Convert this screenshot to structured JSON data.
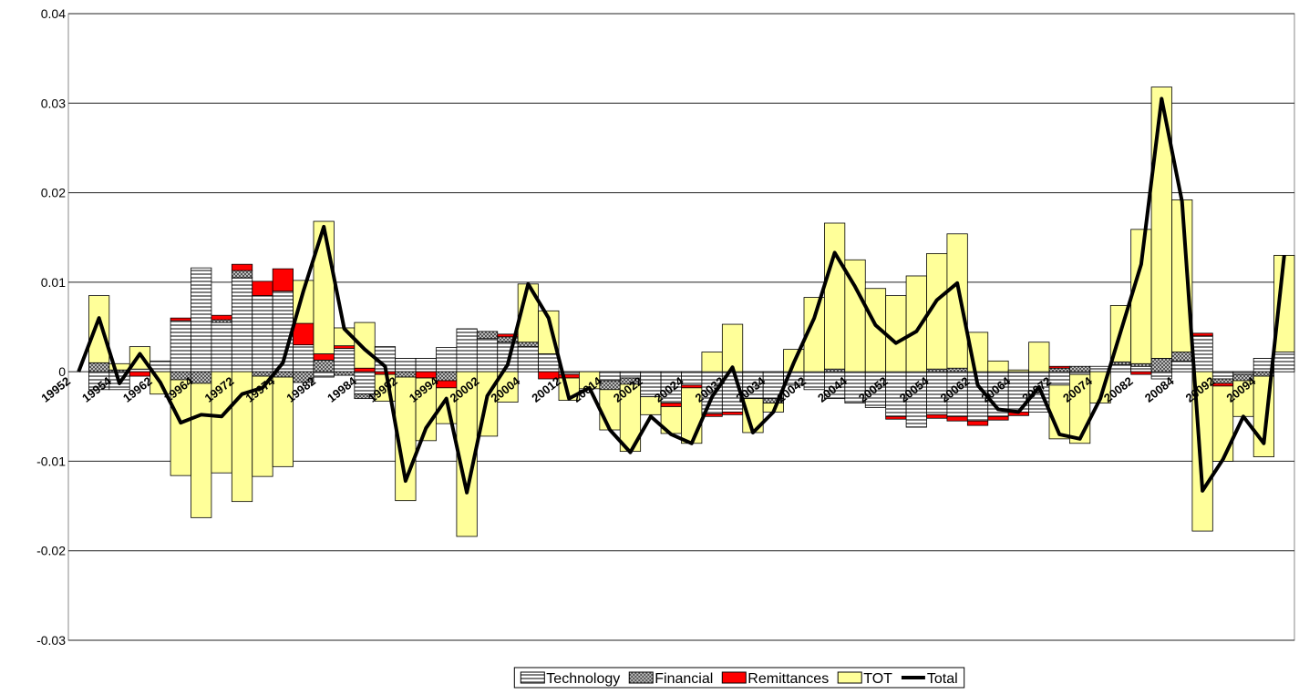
{
  "chart_data": {
    "type": "stacked-bar-line",
    "categories": [
      "19952",
      null,
      "19954",
      null,
      "19962",
      null,
      "19964",
      null,
      "19972",
      null,
      "19974",
      null,
      "19982",
      null,
      "19984",
      null,
      "19992",
      null,
      "19994",
      null,
      "20002",
      null,
      "20004",
      null,
      "20012",
      null,
      "20014",
      null,
      "20022",
      null,
      "20024",
      null,
      "20032",
      null,
      "20034",
      null,
      "20042",
      null,
      "20044",
      null,
      "20052",
      null,
      "20054",
      null,
      "20062",
      null,
      "20064",
      null,
      "20072",
      null,
      "20074",
      null,
      "20082",
      null,
      "20084",
      null,
      "20092",
      null,
      "20094",
      null
    ],
    "series": [
      {
        "name": "Technology",
        "color": "#808080",
        "pattern": "stripes",
        "values": [
          0,
          -0.002,
          -0.002,
          0.0003,
          0.0012,
          0.0057,
          0.0116,
          0.0055,
          0.0105,
          0.0085,
          0.009,
          0.003,
          -0.0006,
          0.0026,
          -0.0025,
          0.0028,
          0.0015,
          0.0015,
          0.0027,
          0.0048,
          0.0037,
          0.0033,
          0.0028,
          0.002,
          -0.0003,
          0,
          -0.001,
          -0.0007,
          -0.0028,
          -0.0035,
          -0.0015,
          -0.0047,
          -0.0045,
          -0.003,
          -0.003,
          -0.0015,
          -0.002,
          -0.003,
          -0.0035,
          -0.004,
          -0.005,
          -0.0062,
          -0.0048,
          -0.005,
          -0.0055,
          -0.005,
          -0.0045,
          -0.0045,
          -0.0015,
          -0.0003,
          0.0006,
          0.0008,
          0.0006,
          -0.0008,
          0.0012,
          0.004,
          -0.0008,
          -0.0003,
          0.0015,
          0.0022
        ]
      },
      {
        "name": "Financial",
        "color": "#555555",
        "pattern": "checker",
        "values": [
          0,
          0.001,
          0.0002,
          0,
          0,
          -0.0009,
          -0.0013,
          0.0003,
          0.0008,
          -0.0005,
          -0.0006,
          -0.0012,
          0.0013,
          -0.0004,
          -0.0005,
          0,
          -0.0006,
          0,
          -0.001,
          0,
          0.0008,
          0.0006,
          0.0005,
          0,
          0,
          0,
          -0.001,
          -0.0007,
          0,
          0,
          0,
          0,
          0,
          0,
          -0.0005,
          0,
          0,
          0.0003,
          0,
          0,
          0,
          0,
          0.0003,
          0.0004,
          0,
          0,
          0,
          0,
          0.0004,
          0.0006,
          0,
          0.0003,
          0.0003,
          0.0015,
          0.001,
          0,
          -0.0005,
          -0.0007,
          -0.0005,
          0
        ]
      },
      {
        "name": "Remittances",
        "color": "#ff0000",
        "values": [
          0,
          0,
          0,
          -0.0005,
          0,
          0.0003,
          0,
          0.0005,
          0.0007,
          0.0016,
          0.0025,
          0.0024,
          0.0007,
          0.0003,
          0.0004,
          -0.0003,
          0,
          -0.0007,
          -0.0008,
          0,
          0,
          0.0003,
          0,
          -0.0008,
          -0.0004,
          0,
          0,
          0,
          0,
          -0.0004,
          -0.0003,
          -0.0003,
          -0.0003,
          0,
          0,
          0,
          0,
          0,
          0,
          0,
          -0.0003,
          0,
          -0.0004,
          -0.0005,
          -0.0005,
          -0.0004,
          -0.0004,
          0,
          0.0002,
          0,
          0,
          0,
          -0.0003,
          0,
          0,
          0.0003,
          -0.0003,
          0,
          0,
          0
        ]
      },
      {
        "name": "TOT",
        "color": "#ffff99",
        "values": [
          0,
          0.0075,
          0.0007,
          0.0025,
          -0.0025,
          -0.0107,
          -0.015,
          -0.0113,
          -0.0145,
          -0.0112,
          -0.01,
          0.0048,
          0.0148,
          0.002,
          0.0051,
          -0.003,
          -0.0138,
          -0.007,
          -0.004,
          -0.0184,
          -0.0072,
          -0.0034,
          0.0065,
          0.0048,
          -0.0025,
          -0.0019,
          -0.0045,
          -0.0075,
          -0.002,
          -0.003,
          -0.0062,
          0.0022,
          0.0053,
          -0.0038,
          -0.001,
          0.0025,
          0.0083,
          0.0163,
          0.0125,
          0.0093,
          0.0085,
          0.0107,
          0.0129,
          0.015,
          0.0044,
          0.0012,
          0.0002,
          0.0033,
          -0.006,
          -0.0077,
          -0.0035,
          0.0063,
          0.015,
          0.0303,
          0.017,
          -0.0178,
          -0.0084,
          -0.004,
          -0.009,
          0.0108
        ]
      },
      {
        "name": "Total",
        "color": "#000000",
        "line": true,
        "values": [
          0,
          0.006,
          -0.0013,
          0.002,
          -0.0012,
          -0.0057,
          -0.0048,
          -0.005,
          -0.0025,
          -0.0018,
          0.001,
          0.009,
          0.0162,
          0.0048,
          0.0025,
          0.0006,
          -0.0122,
          -0.0063,
          -0.003,
          -0.0135,
          -0.0027,
          0.0008,
          0.0098,
          0.006,
          -0.003,
          -0.0018,
          -0.0065,
          -0.009,
          -0.005,
          -0.007,
          -0.008,
          -0.0028,
          0.0005,
          -0.0068,
          -0.0045,
          0.001,
          0.006,
          0.0133,
          0.0095,
          0.0052,
          0.0032,
          0.0045,
          0.008,
          0.0099,
          -0.0015,
          -0.0042,
          -0.0045,
          -0.0017,
          -0.007,
          -0.0075,
          -0.003,
          0.0045,
          0.012,
          0.0305,
          0.019,
          -0.0133,
          -0.0098,
          -0.005,
          -0.008,
          0.013
        ]
      }
    ],
    "ylim": [
      -0.03,
      0.04
    ],
    "yticks": [
      -0.03,
      -0.02,
      -0.01,
      0,
      0.01,
      0.02,
      0.03,
      0.04
    ],
    "grid": true,
    "legend": "bottom"
  }
}
